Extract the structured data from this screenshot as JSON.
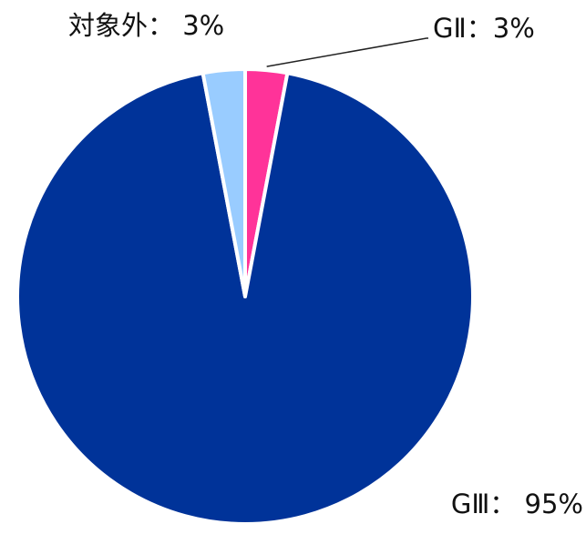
{
  "chart_data": {
    "type": "pie",
    "categories": [
      "GⅡ",
      "GⅢ",
      "対象外"
    ],
    "values": [
      3,
      95,
      3
    ],
    "labels": [
      "GⅡ：3%",
      "GⅢ： 95%",
      "対象外： 3%"
    ],
    "colors": [
      "#ff3399",
      "#003399",
      "#99ccff"
    ]
  }
}
